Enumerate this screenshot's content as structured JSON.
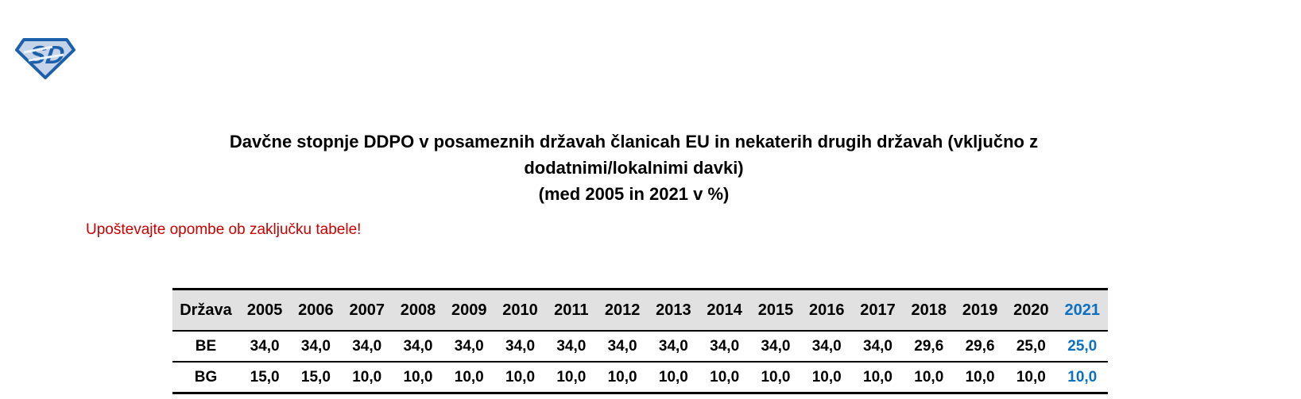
{
  "colors": {
    "accent_blue": "#0b70c0",
    "notice_red": "#cc0000",
    "table_header_bg": "#e1e1e1",
    "logo_blue": "#1c5fab",
    "logo_fill": "#c6d4e9"
  },
  "logo": {
    "text": "SD"
  },
  "title": {
    "line1": "Davčne stopnje DDPO v posameznih državah članicah EU in nekaterih drugih državah (vključno z",
    "line2": "dodatnimi/lokalnimi davki)",
    "line3": "(med 2005 in 2021 v %)"
  },
  "notice": {
    "text": "Upoštevajte opombe ob zaključku tabele!"
  },
  "table": {
    "columns": [
      "Država",
      "2005",
      "2006",
      "2007",
      "2008",
      "2009",
      "2010",
      "2011",
      "2012",
      "2013",
      "2014",
      "2015",
      "2016",
      "2017",
      "2018",
      "2019",
      "2020",
      "2021"
    ],
    "highlight_last_column": true,
    "rows": [
      {
        "country": "BE",
        "values": [
          "34,0",
          "34,0",
          "34,0",
          "34,0",
          "34,0",
          "34,0",
          "34,0",
          "34,0",
          "34,0",
          "34,0",
          "34,0",
          "34,0",
          "34,0",
          "29,6",
          "29,6",
          "25,0",
          "25,0"
        ]
      },
      {
        "country": "BG",
        "values": [
          "15,0",
          "15,0",
          "10,0",
          "10,0",
          "10,0",
          "10,0",
          "10,0",
          "10,0",
          "10,0",
          "10,0",
          "10,0",
          "10,0",
          "10,0",
          "10,0",
          "10,0",
          "10,0",
          "10,0"
        ]
      }
    ]
  }
}
